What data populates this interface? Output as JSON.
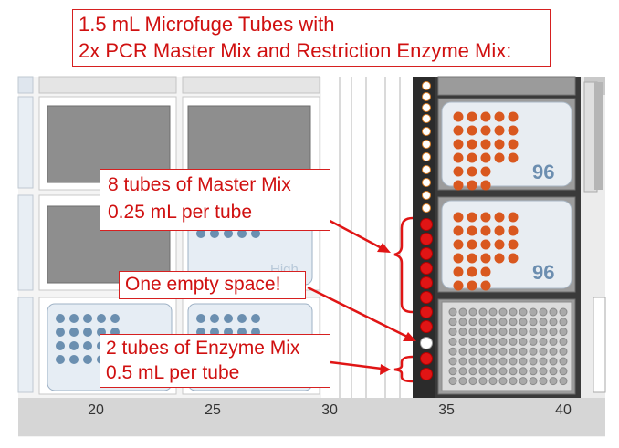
{
  "title": {
    "line1": "1.5 mL Microfuge Tubes with",
    "line2": "2x PCR Master Mix and Restriction Enzyme Mix:"
  },
  "callouts": {
    "master_mix": {
      "line1": "8 tubes of Master Mix",
      "line2": "0.25 mL per tube"
    },
    "empty": {
      "text": "One empty space!"
    },
    "enzyme_mix": {
      "line1": "2 tubes of Enzyme Mix",
      "line2": "0.5 mL per tube"
    }
  },
  "deck": {
    "axis_labels": [
      "20",
      "25",
      "30",
      "35",
      "40"
    ],
    "plate_labels": {
      "plate_96_top": "96",
      "plate_96_middle": "96",
      "plate_high": "High"
    }
  },
  "colors": {
    "annotation_red": "#e01515",
    "orange_well": "#d9581f",
    "blue_well": "#6b8fb0",
    "plate_frame": "#8f8f8f",
    "deck_bottom": "#d6d6d6"
  }
}
